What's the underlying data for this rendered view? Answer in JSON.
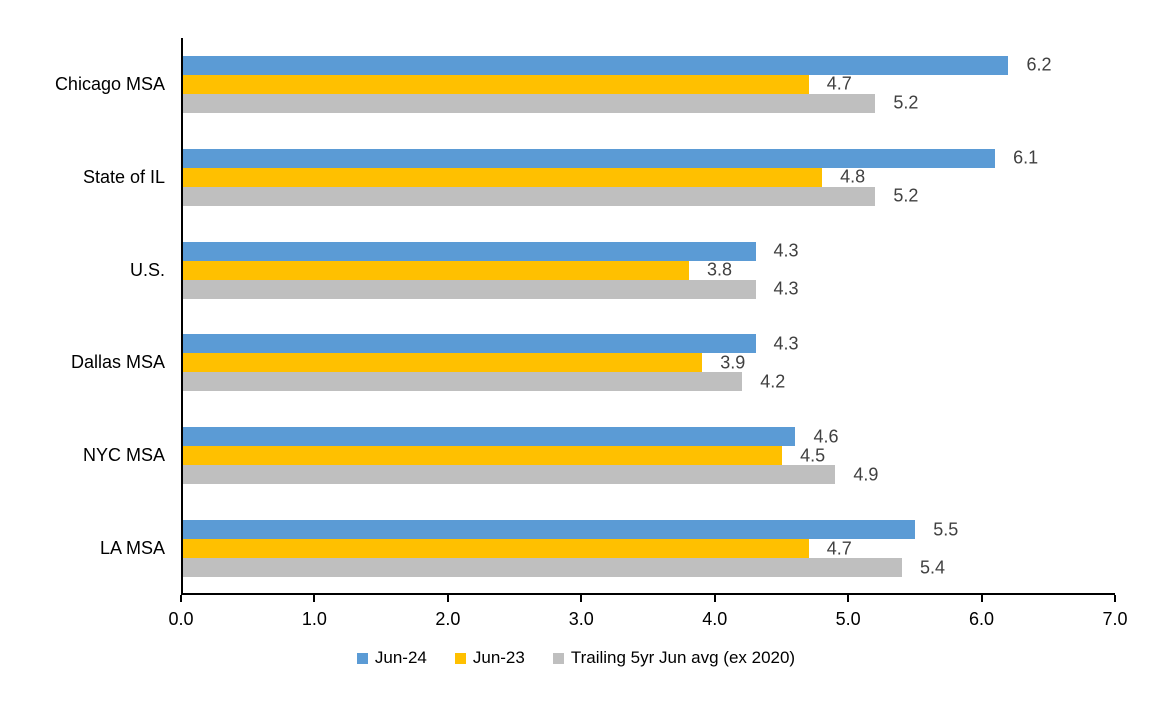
{
  "chart_data": {
    "type": "bar",
    "orientation": "horizontal",
    "categories": [
      "Chicago MSA",
      "State of IL",
      "U.S.",
      "Dallas MSA",
      "NYC MSA",
      "LA MSA"
    ],
    "series": [
      {
        "name": "Jun-24",
        "color": "#5B9BD5",
        "values": [
          6.2,
          6.1,
          4.3,
          4.3,
          4.6,
          5.5
        ]
      },
      {
        "name": "Jun-23",
        "color": "#FFC000",
        "values": [
          4.7,
          4.8,
          3.8,
          3.9,
          4.5,
          4.7
        ]
      },
      {
        "name": "Trailing 5yr Jun avg (ex 2020)",
        "color": "#BFBFBF",
        "values": [
          5.2,
          5.2,
          4.3,
          4.2,
          4.9,
          5.4
        ]
      }
    ],
    "xlim": [
      0,
      7
    ],
    "xtick_labels": [
      "0.0",
      "1.0",
      "2.0",
      "3.0",
      "4.0",
      "5.0",
      "6.0",
      "7.0"
    ],
    "value_labels_decimals": 1,
    "value_label_color": "#404040",
    "axis_color": "#000000",
    "text_color": "#000000",
    "grid": false,
    "legend_position": "bottom"
  }
}
